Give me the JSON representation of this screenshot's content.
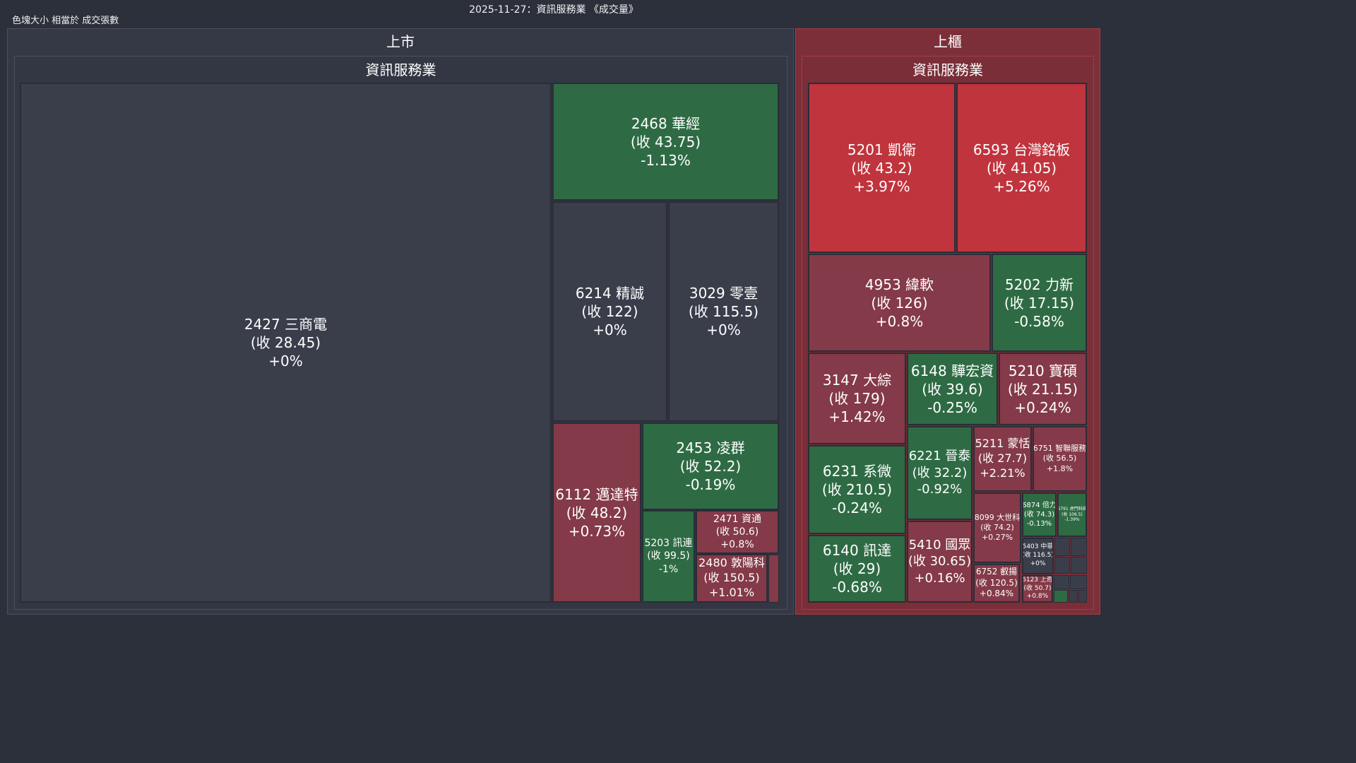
{
  "page": {
    "title": "2025-11-27：資訊服務業 《成交量》",
    "subtitle": "色塊大小 相當於 成交張數"
  },
  "colors": {
    "background": "#2c303b",
    "neutral": "#3a3e4b",
    "up_light": "#843a48",
    "up_strong": "#c0343d",
    "down": "#2e6b44",
    "listed_panel": "#353945",
    "otc_panel": "#7d2f39"
  },
  "chart_data": {
    "type": "treemap",
    "title": "2025-11-27：資訊服務業 《成交量》",
    "size_metric": "成交張數",
    "markets": [
      {
        "name": "上市",
        "sector": "資訊服務業",
        "stocks": [
          {
            "code": "2427",
            "name": "三商電",
            "close": "28.45",
            "change": "+0%"
          },
          {
            "code": "2468",
            "name": "華經",
            "close": "43.75",
            "change": "-1.13%"
          },
          {
            "code": "6214",
            "name": "精誠",
            "close": "122",
            "change": "+0%"
          },
          {
            "code": "3029",
            "name": "零壹",
            "close": "115.5",
            "change": "+0%"
          },
          {
            "code": "6112",
            "name": "邁達特",
            "close": "48.2",
            "change": "+0.73%"
          },
          {
            "code": "2453",
            "name": "凌群",
            "close": "52.2",
            "change": "-0.19%"
          },
          {
            "code": "5203",
            "name": "訊連",
            "close": "99.5",
            "change": "-1%"
          },
          {
            "code": "2471",
            "name": "資通",
            "close": "50.6",
            "change": "+0.8%"
          },
          {
            "code": "2480",
            "name": "敦陽科",
            "close": "150.5",
            "change": "+1.01%"
          }
        ]
      },
      {
        "name": "上櫃",
        "sector": "資訊服務業",
        "stocks": [
          {
            "code": "5201",
            "name": "凱衛",
            "close": "43.2",
            "change": "+3.97%"
          },
          {
            "code": "6593",
            "name": "台灣銘板",
            "close": "41.05",
            "change": "+5.26%"
          },
          {
            "code": "4953",
            "name": "緯軟",
            "close": "126",
            "change": "+0.8%"
          },
          {
            "code": "5202",
            "name": "力新",
            "close": "17.15",
            "change": "-0.58%"
          },
          {
            "code": "3147",
            "name": "大綜",
            "close": "179",
            "change": "+1.42%"
          },
          {
            "code": "6148",
            "name": "驊宏資",
            "close": "39.6",
            "change": "-0.25%"
          },
          {
            "code": "5210",
            "name": "寶碩",
            "close": "21.15",
            "change": "+0.24%"
          },
          {
            "code": "6231",
            "name": "系微",
            "close": "210.5",
            "change": "-0.24%"
          },
          {
            "code": "6221",
            "name": "晉泰",
            "close": "32.2",
            "change": "-0.92%"
          },
          {
            "code": "5211",
            "name": "蒙恬",
            "close": "27.7",
            "change": "+2.21%"
          },
          {
            "code": "6751",
            "name": "智聯服務",
            "close": "56.5",
            "change": "+1.8%"
          },
          {
            "code": "6140",
            "name": "訊達",
            "close": "29",
            "change": "-0.68%"
          },
          {
            "code": "5410",
            "name": "國眾",
            "close": "30.65",
            "change": "+0.16%"
          },
          {
            "code": "8099",
            "name": "大世科",
            "close": "74.2",
            "change": "+0.27%"
          },
          {
            "code": "6874",
            "name": "倍力",
            "close": "74.3",
            "change": "-0.13%"
          },
          {
            "code": "6791",
            "name": "虎門科技",
            "close": "106.5",
            "change": "-1.39%"
          },
          {
            "code": "5403",
            "name": "中菲",
            "close": "116.5",
            "change": "+0%"
          },
          {
            "code": "6752",
            "name": "叡揚",
            "close": "120.5",
            "change": "+0.84%"
          },
          {
            "code": "6123",
            "name": "上奇",
            "close": "50.7",
            "change": "+0.8%"
          }
        ]
      }
    ]
  }
}
